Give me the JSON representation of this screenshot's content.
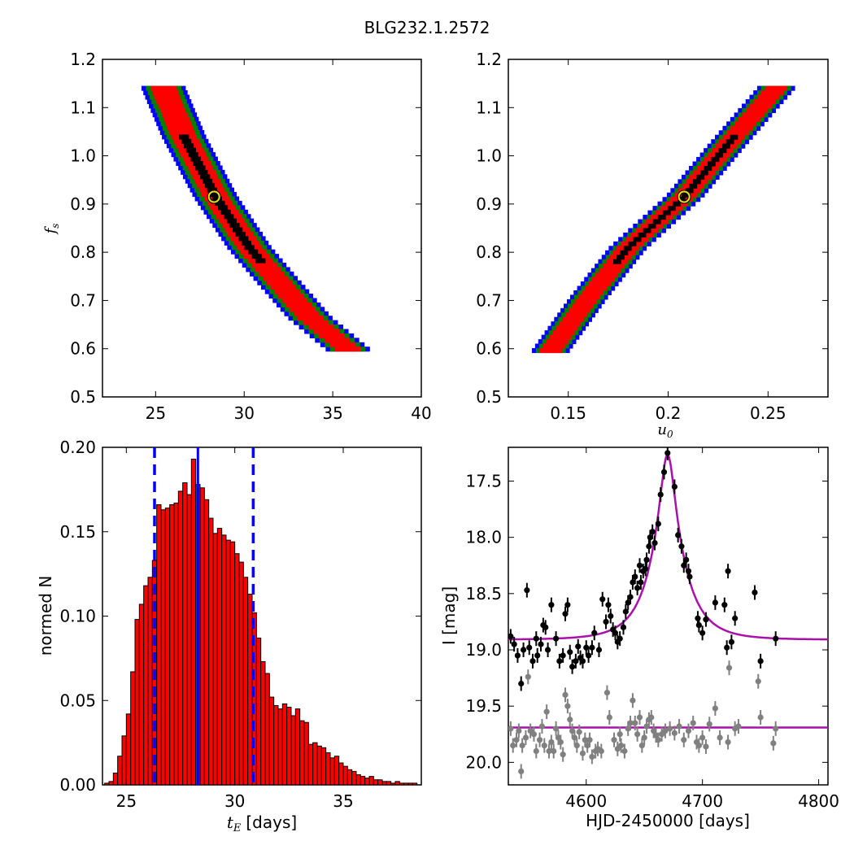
{
  "figure": {
    "title": "BLG232.1.2572"
  },
  "chart_data": [
    {
      "panel": "top-left",
      "type": "heatmap",
      "title": "",
      "xlabel": "",
      "ylabel": "f",
      "ylabel_sub": "s",
      "xlim": [
        22,
        40
      ],
      "ylim": [
        0.5,
        1.2
      ],
      "xticks": [
        25,
        30,
        35,
        40
      ],
      "yticks": [
        0.5,
        0.6,
        0.7,
        0.8,
        0.9,
        1.0,
        1.1,
        1.2
      ],
      "colors": {
        "outer": "#0000ff",
        "middle": "#008000",
        "inner": "#ff0000",
        "core": "#000000"
      },
      "ridge": [
        [
          25.4,
          1.145
        ],
        [
          26.6,
          1.04
        ],
        [
          28.4,
          0.915
        ],
        [
          30.3,
          0.81
        ],
        [
          31.8,
          0.745
        ],
        [
          33.7,
          0.665
        ],
        [
          36.0,
          0.595
        ]
      ],
      "halfwidth_x": {
        "outer": 1.25,
        "middle": 1.0,
        "inner": 0.72,
        "core": 0.28
      },
      "best_fit": {
        "x": 28.3,
        "y": 0.915,
        "marker": "yellow-ring"
      }
    },
    {
      "panel": "top-right",
      "type": "heatmap",
      "title": "",
      "xlabel": "u",
      "xlabel_sub": "0",
      "ylabel": "",
      "xlim": [
        0.12,
        0.28
      ],
      "ylim": [
        0.5,
        1.2
      ],
      "xticks": [
        0.15,
        0.2,
        0.25
      ],
      "yticks": [
        0.5,
        0.6,
        0.7,
        0.8,
        0.9,
        1.0,
        1.1,
        1.2
      ],
      "colors": {
        "outer": "#0000ff",
        "middle": "#008000",
        "inner": "#ff0000",
        "core": "#000000"
      },
      "ridge": [
        [
          0.1405,
          0.592
        ],
        [
          0.16,
          0.705
        ],
        [
          0.18,
          0.81
        ],
        [
          0.2,
          0.885
        ],
        [
          0.208,
          0.915
        ],
        [
          0.23,
          1.025
        ],
        [
          0.255,
          1.145
        ]
      ],
      "halfwidth_x": {
        "outer": 0.0095,
        "middle": 0.0075,
        "inner": 0.0055,
        "core": 0.002
      },
      "best_fit": {
        "x": 0.208,
        "y": 0.915,
        "marker": "yellow-ring"
      }
    },
    {
      "panel": "bottom-left",
      "type": "bar",
      "title": "",
      "xlabel": "t",
      "xlabel_sub": "E",
      "xlabel_suffix": "[days]",
      "ylabel": "normed N",
      "xlim": [
        23.9,
        38.6
      ],
      "ylim": [
        0,
        0.2
      ],
      "xticks": [
        25,
        30,
        35
      ],
      "yticks": [
        0.0,
        0.05,
        0.1,
        0.15,
        0.2
      ],
      "yticklabels": [
        "0.00",
        "0.05",
        "0.10",
        "0.15",
        "0.20"
      ],
      "bar_color": "#ff0000",
      "bin_start": 24.0,
      "bin_width": 0.2,
      "values": [
        0.001,
        0.002,
        0.007,
        0.017,
        0.029,
        0.042,
        0.067,
        0.098,
        0.107,
        0.118,
        0.123,
        0.133,
        0.166,
        0.163,
        0.164,
        0.166,
        0.167,
        0.174,
        0.179,
        0.172,
        0.193,
        0.178,
        0.176,
        0.169,
        0.158,
        0.149,
        0.152,
        0.148,
        0.145,
        0.144,
        0.137,
        0.132,
        0.123,
        0.113,
        0.102,
        0.087,
        0.073,
        0.066,
        0.052,
        0.047,
        0.045,
        0.048,
        0.046,
        0.041,
        0.045,
        0.038,
        0.037,
        0.024,
        0.025,
        0.023,
        0.022,
        0.019,
        0.016,
        0.017,
        0.013,
        0.011,
        0.009,
        0.008,
        0.006,
        0.005,
        0.004,
        0.005,
        0.003,
        0.003,
        0.002,
        0.002,
        0.001,
        0.002,
        0.001,
        0.001,
        0.001,
        0.001
      ],
      "median": 28.3,
      "interval": [
        26.3,
        30.85
      ]
    },
    {
      "panel": "bottom-right",
      "type": "scatter",
      "title": "",
      "xlabel": "HJD-2450000 [days]",
      "ylabel": "I [mag]",
      "xlim": [
        4533,
        4808
      ],
      "ylim": [
        20.2,
        17.2
      ],
      "xticks": [
        4600,
        4700,
        4800
      ],
      "yticks": [
        17.5,
        18.0,
        18.5,
        19.0,
        19.5,
        20.0
      ],
      "yticklabels": [
        "17.5",
        "18.0",
        "18.5",
        "19.0",
        "19.5",
        "20.0"
      ],
      "model": {
        "color": "#aa10aa",
        "t0": 4670,
        "tE": 28.3,
        "u0": 0.208,
        "fs": 0.915,
        "base": 18.91,
        "flat_series_mag": 19.69
      },
      "series": [
        {
          "color": "#000000",
          "points": [
            [
              4535,
              18.88
            ],
            [
              4538,
              18.95
            ],
            [
              4541,
              19.05
            ],
            [
              4544,
              19.3
            ],
            [
              4546,
              19.0
            ],
            [
              4549,
              18.47
            ],
            [
              4551,
              18.98
            ],
            [
              4554,
              19.1
            ],
            [
              4557,
              18.9
            ],
            [
              4558,
              19.05
            ],
            [
              4561,
              18.95
            ],
            [
              4563,
              18.78
            ],
            [
              4565,
              18.8
            ],
            [
              4567,
              19.0
            ],
            [
              4570,
              18.6
            ],
            [
              4574,
              18.9
            ],
            [
              4577,
              19.1
            ],
            [
              4580,
              19.05
            ],
            [
              4582,
              18.68
            ],
            [
              4584,
              18.6
            ],
            [
              4586,
              19.02
            ],
            [
              4588,
              19.15
            ],
            [
              4591,
              19.1
            ],
            [
              4593,
              18.97
            ],
            [
              4595,
              19.07
            ],
            [
              4597,
              19.1
            ],
            [
              4600,
              18.98
            ],
            [
              4602,
              19.05
            ],
            [
              4605,
              18.98
            ],
            [
              4607,
              18.85
            ],
            [
              4611,
              19.0
            ],
            [
              4614,
              18.55
            ],
            [
              4617,
              18.75
            ],
            [
              4619,
              18.6
            ],
            [
              4621,
              18.7
            ],
            [
              4623,
              18.82
            ],
            [
              4625,
              18.85
            ],
            [
              4627,
              18.93
            ],
            [
              4629,
              18.9
            ],
            [
              4632,
              18.8
            ],
            [
              4634,
              18.66
            ],
            [
              4636,
              18.58
            ],
            [
              4638,
              18.53
            ],
            [
              4640,
              18.4
            ],
            [
              4642,
              18.35
            ],
            [
              4644,
              18.45
            ],
            [
              4646,
              18.25
            ],
            [
              4647,
              18.4
            ],
            [
              4649,
              18.3
            ],
            [
              4651,
              18.28
            ],
            [
              4652,
              18.2
            ],
            [
              4654,
              18.08
            ],
            [
              4655,
              18.0
            ],
            [
              4657,
              17.95
            ],
            [
              4659,
              18.05
            ],
            [
              4662,
              17.88
            ],
            [
              4664,
              17.62
            ],
            [
              4667,
              17.42
            ],
            [
              4670,
              17.25
            ],
            [
              4676,
              17.55
            ],
            [
              4679,
              17.98
            ],
            [
              4682,
              18.08
            ],
            [
              4684,
              18.25
            ],
            [
              4686,
              18.2
            ],
            [
              4688,
              18.3
            ],
            [
              4689,
              18.35
            ],
            [
              4696,
              18.72
            ],
            [
              4697,
              18.78
            ],
            [
              4700,
              18.85
            ],
            [
              4703,
              18.73
            ],
            [
              4711,
              18.58
            ],
            [
              4719,
              18.6
            ],
            [
              4721,
              18.98
            ],
            [
              4722,
              18.3
            ],
            [
              4725,
              18.93
            ],
            [
              4728,
              18.72
            ],
            [
              4745,
              18.49
            ],
            [
              4750,
              19.1
            ],
            [
              4763,
              18.9
            ]
          ]
        },
        {
          "color": "#808080",
          "points": [
            [
              4535,
              19.7
            ],
            [
              4537,
              19.85
            ],
            [
              4540,
              19.8
            ],
            [
              4542,
              19.72
            ],
            [
              4544,
              20.08
            ],
            [
              4545,
              19.85
            ],
            [
              4548,
              19.78
            ],
            [
              4550,
              19.24
            ],
            [
              4552,
              19.72
            ],
            [
              4555,
              19.75
            ],
            [
              4557,
              19.9
            ],
            [
              4560,
              19.8
            ],
            [
              4562,
              19.68
            ],
            [
              4564,
              19.85
            ],
            [
              4566,
              19.55
            ],
            [
              4568,
              19.9
            ],
            [
              4570,
              19.82
            ],
            [
              4572,
              19.9
            ],
            [
              4574,
              19.7
            ],
            [
              4576,
              19.78
            ],
            [
              4578,
              19.82
            ],
            [
              4580,
              19.93
            ],
            [
              4582,
              19.4
            ],
            [
              4584,
              19.5
            ],
            [
              4586,
              19.62
            ],
            [
              4588,
              19.72
            ],
            [
              4590,
              19.78
            ],
            [
              4592,
              19.85
            ],
            [
              4594,
              19.73
            ],
            [
              4597,
              19.92
            ],
            [
              4599,
              19.8
            ],
            [
              4601,
              19.85
            ],
            [
              4603,
              19.8
            ],
            [
              4605,
              19.95
            ],
            [
              4608,
              19.9
            ],
            [
              4610,
              19.88
            ],
            [
              4613,
              19.9
            ],
            [
              4618,
              19.38
            ],
            [
              4620,
              19.6
            ],
            [
              4624,
              19.8
            ],
            [
              4627,
              19.88
            ],
            [
              4629,
              19.75
            ],
            [
              4630,
              19.85
            ],
            [
              4633,
              19.9
            ],
            [
              4636,
              19.7
            ],
            [
              4638,
              19.65
            ],
            [
              4640,
              19.45
            ],
            [
              4642,
              19.65
            ],
            [
              4644,
              19.75
            ],
            [
              4646,
              19.6
            ],
            [
              4648,
              19.85
            ],
            [
              4650,
              19.78
            ],
            [
              4652,
              19.68
            ],
            [
              4654,
              19.62
            ],
            [
              4656,
              19.6
            ],
            [
              4658,
              19.72
            ],
            [
              4660,
              19.76
            ],
            [
              4662,
              19.8
            ],
            [
              4665,
              19.75
            ],
            [
              4668,
              19.72
            ],
            [
              4672,
              19.7
            ],
            [
              4676,
              19.74
            ],
            [
              4680,
              19.68
            ],
            [
              4684,
              19.8
            ],
            [
              4688,
              19.72
            ],
            [
              4692,
              19.65
            ],
            [
              4695,
              19.82
            ],
            [
              4697,
              19.85
            ],
            [
              4700,
              19.78
            ],
            [
              4703,
              19.86
            ],
            [
              4706,
              19.66
            ],
            [
              4711,
              19.52
            ],
            [
              4715,
              19.78
            ],
            [
              4722,
              19.82
            ],
            [
              4723,
              19.16
            ],
            [
              4728,
              19.7
            ],
            [
              4731,
              19.68
            ],
            [
              4748,
              19.28
            ],
            [
              4750,
              19.6
            ],
            [
              4761,
              19.83
            ],
            [
              4763,
              19.7
            ]
          ]
        }
      ]
    }
  ]
}
